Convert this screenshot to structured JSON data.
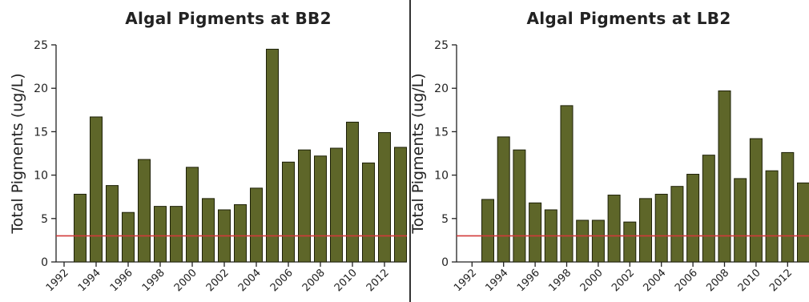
{
  "chart_data": [
    {
      "type": "bar",
      "title": "Algal Pigments at BB2",
      "ylabel": "Total Pigments (ug/L)",
      "xlabel": "",
      "ylim": [
        0,
        25
      ],
      "yticks": [
        0,
        5,
        10,
        15,
        20,
        25
      ],
      "x_tick_labels": [
        "1992",
        "1994",
        "1996",
        "1998",
        "2000",
        "2002",
        "2004",
        "2006",
        "2008",
        "2010",
        "2012"
      ],
      "categories": [
        "1993",
        "1994",
        "1995",
        "1996",
        "1997",
        "1998",
        "1999",
        "2000",
        "2001",
        "2002",
        "2003",
        "2004",
        "2005",
        "2006",
        "2007",
        "2008",
        "2009",
        "2010",
        "2011",
        "2012",
        "2013"
      ],
      "values": [
        7.8,
        16.7,
        8.8,
        5.7,
        11.8,
        6.4,
        6.4,
        10.9,
        7.3,
        6.0,
        6.6,
        8.5,
        24.5,
        11.5,
        12.9,
        12.2,
        13.1,
        16.1,
        11.4,
        14.9,
        13.2
      ],
      "reference_line": {
        "y": 3,
        "color": "#d23a3a"
      },
      "bar_color": "#5e6629",
      "grid": false
    },
    {
      "type": "bar",
      "title": "Algal Pigments at LB2",
      "ylabel": "Total Pigments (ug/L)",
      "xlabel": "",
      "ylim": [
        0,
        25
      ],
      "yticks": [
        0,
        5,
        10,
        15,
        20,
        25
      ],
      "x_tick_labels": [
        "1992",
        "1994",
        "1996",
        "1998",
        "2000",
        "2002",
        "2004",
        "2006",
        "2008",
        "2010",
        "2012"
      ],
      "categories": [
        "1993",
        "1994",
        "1995",
        "1996",
        "1997",
        "1998",
        "1999",
        "2000",
        "2001",
        "2002",
        "2003",
        "2004",
        "2005",
        "2006",
        "2007",
        "2008",
        "2009",
        "2010",
        "2011",
        "2012",
        "2013"
      ],
      "values": [
        7.2,
        14.4,
        12.9,
        6.8,
        6.0,
        18.0,
        4.8,
        4.8,
        7.7,
        4.6,
        7.3,
        7.8,
        8.7,
        10.1,
        12.3,
        19.7,
        9.6,
        14.2,
        10.5,
        12.6,
        9.1
      ],
      "reference_line": {
        "y": 3,
        "color": "#d23a3a"
      },
      "bar_color": "#5e6629",
      "grid": false
    }
  ]
}
